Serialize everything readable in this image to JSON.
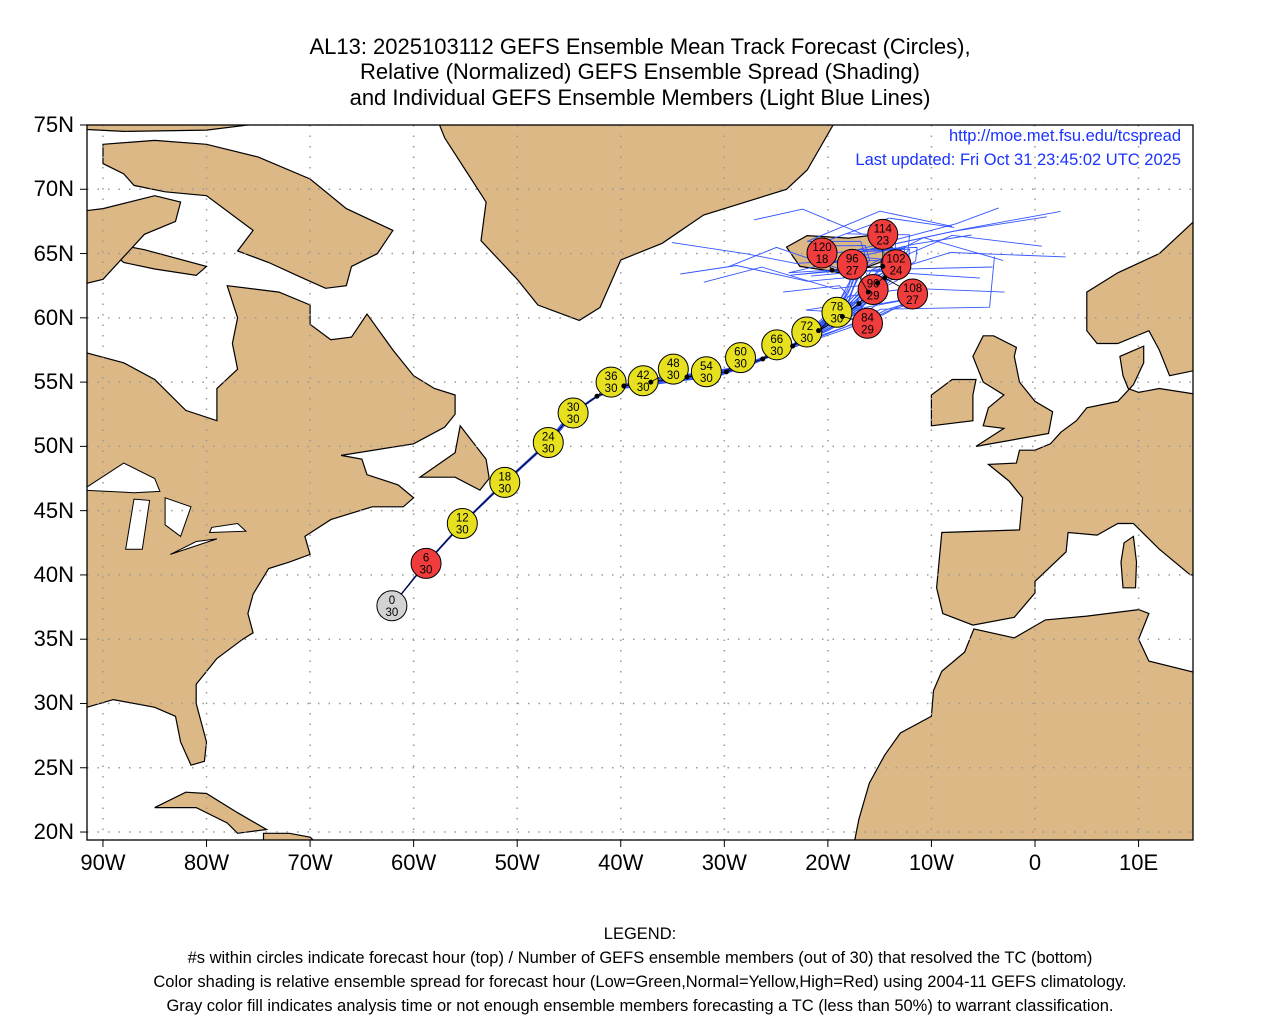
{
  "title": {
    "line1": "AL13: 2025103112 GEFS Ensemble Mean Track Forecast (Circles),",
    "line2": "Relative (Normalized) GEFS Ensemble Spread (Shading)",
    "line3": "and Individual GEFS Ensemble Members (Light Blue Lines)"
  },
  "credits": {
    "url": "http://moe.met.fsu.edu/tcspread",
    "updated": "Last updated: Fri Oct 31 23:45:02 UTC 2025"
  },
  "colors": {
    "land": "#dcb887",
    "ocean": "#ffffff",
    "member_line": "#3355ff",
    "low": "#33cc33",
    "normal": "#e6e01e",
    "high": "#f03c3c",
    "gray": "#d3d3d3"
  },
  "chart_data": {
    "type": "scatter",
    "xlim": [
      -92,
      15
    ],
    "ylim": [
      19.4,
      75
    ],
    "lat_ticks": [
      "75N",
      "70N",
      "65N",
      "60N",
      "55N",
      "50N",
      "45N",
      "40N",
      "35N",
      "30N",
      "25N",
      "20N"
    ],
    "lon_ticks": [
      "90W",
      "80W",
      "70W",
      "60W",
      "50W",
      "40W",
      "30W",
      "20W",
      "10W",
      "0",
      "10E"
    ],
    "grid": true,
    "mean_track": [
      {
        "hour": "0",
        "members": "30",
        "lon": -62.1,
        "lat": 37.6,
        "spread": "gray"
      },
      {
        "hour": "6",
        "members": "30",
        "lon": -58.8,
        "lat": 40.9,
        "spread": "high"
      },
      {
        "hour": "12",
        "members": "30",
        "lon": -55.3,
        "lat": 44.0,
        "spread": "normal"
      },
      {
        "hour": "18",
        "members": "30",
        "lon": -51.2,
        "lat": 47.2,
        "spread": "normal"
      },
      {
        "hour": "24",
        "members": "30",
        "lon": -47.0,
        "lat": 50.3,
        "spread": "normal"
      },
      {
        "hour": "30",
        "members": "30",
        "lon": -44.6,
        "lat": 52.6,
        "spread": "normal"
      },
      {
        "hour": "36",
        "members": "30",
        "lon": -42.3,
        "lat": 53.9,
        "spread": "normal"
      },
      {
        "hour": "42",
        "members": "30",
        "lon": -39.7,
        "lat": 54.7,
        "spread": "normal"
      },
      {
        "hour": "48",
        "members": "30",
        "lon": -37.1,
        "lat": 55.0,
        "spread": "normal"
      },
      {
        "hour": "54",
        "members": "30",
        "lon": -33.6,
        "lat": 55.4,
        "spread": "normal"
      },
      {
        "hour": "60",
        "members": "30",
        "lon": -29.8,
        "lat": 55.8,
        "spread": "normal"
      },
      {
        "hour": "66",
        "members": "30",
        "lon": -26.3,
        "lat": 56.8,
        "spread": "normal"
      },
      {
        "hour": "72",
        "members": "30",
        "lon": -23.4,
        "lat": 57.8,
        "spread": "normal"
      },
      {
        "hour": "78",
        "members": "30",
        "lon": -20.9,
        "lat": 59.0,
        "spread": "normal"
      },
      {
        "hour": "84",
        "members": "29",
        "lon": -18.6,
        "lat": 60.1,
        "spread": "high"
      },
      {
        "hour": "90",
        "members": "29",
        "lon": -17.0,
        "lat": 61.1,
        "spread": "high"
      },
      {
        "hour": "96",
        "members": "27",
        "lon": -16.1,
        "lat": 62.0,
        "spread": "high"
      },
      {
        "hour": "102",
        "members": "24",
        "lon": -15.2,
        "lat": 62.7,
        "spread": "high"
      },
      {
        "hour": "108",
        "members": "27",
        "lon": -14.5,
        "lat": 63.1,
        "spread": "high"
      },
      {
        "hour": "114",
        "members": "23",
        "lon": -14.7,
        "lat": 64.0,
        "spread": "high"
      },
      {
        "hour": "120",
        "members": "18",
        "lon": -19.6,
        "lat": 63.7,
        "spread": "high"
      }
    ]
  },
  "legend": {
    "heading": "LEGEND:",
    "line1": "#s within circles indicate forecast hour (top) / Number of GEFS ensemble members (out of 30) that resolved the TC (bottom)",
    "line2": "Color shading is relative ensemble spread for forecast hour (Low=Green,Normal=Yellow,High=Red) using 2004-11 GEFS climatology.",
    "line3": "Gray color fill indicates analysis time or not enough ensemble members forecasting a TC (less than 50%) to warrant classification."
  }
}
